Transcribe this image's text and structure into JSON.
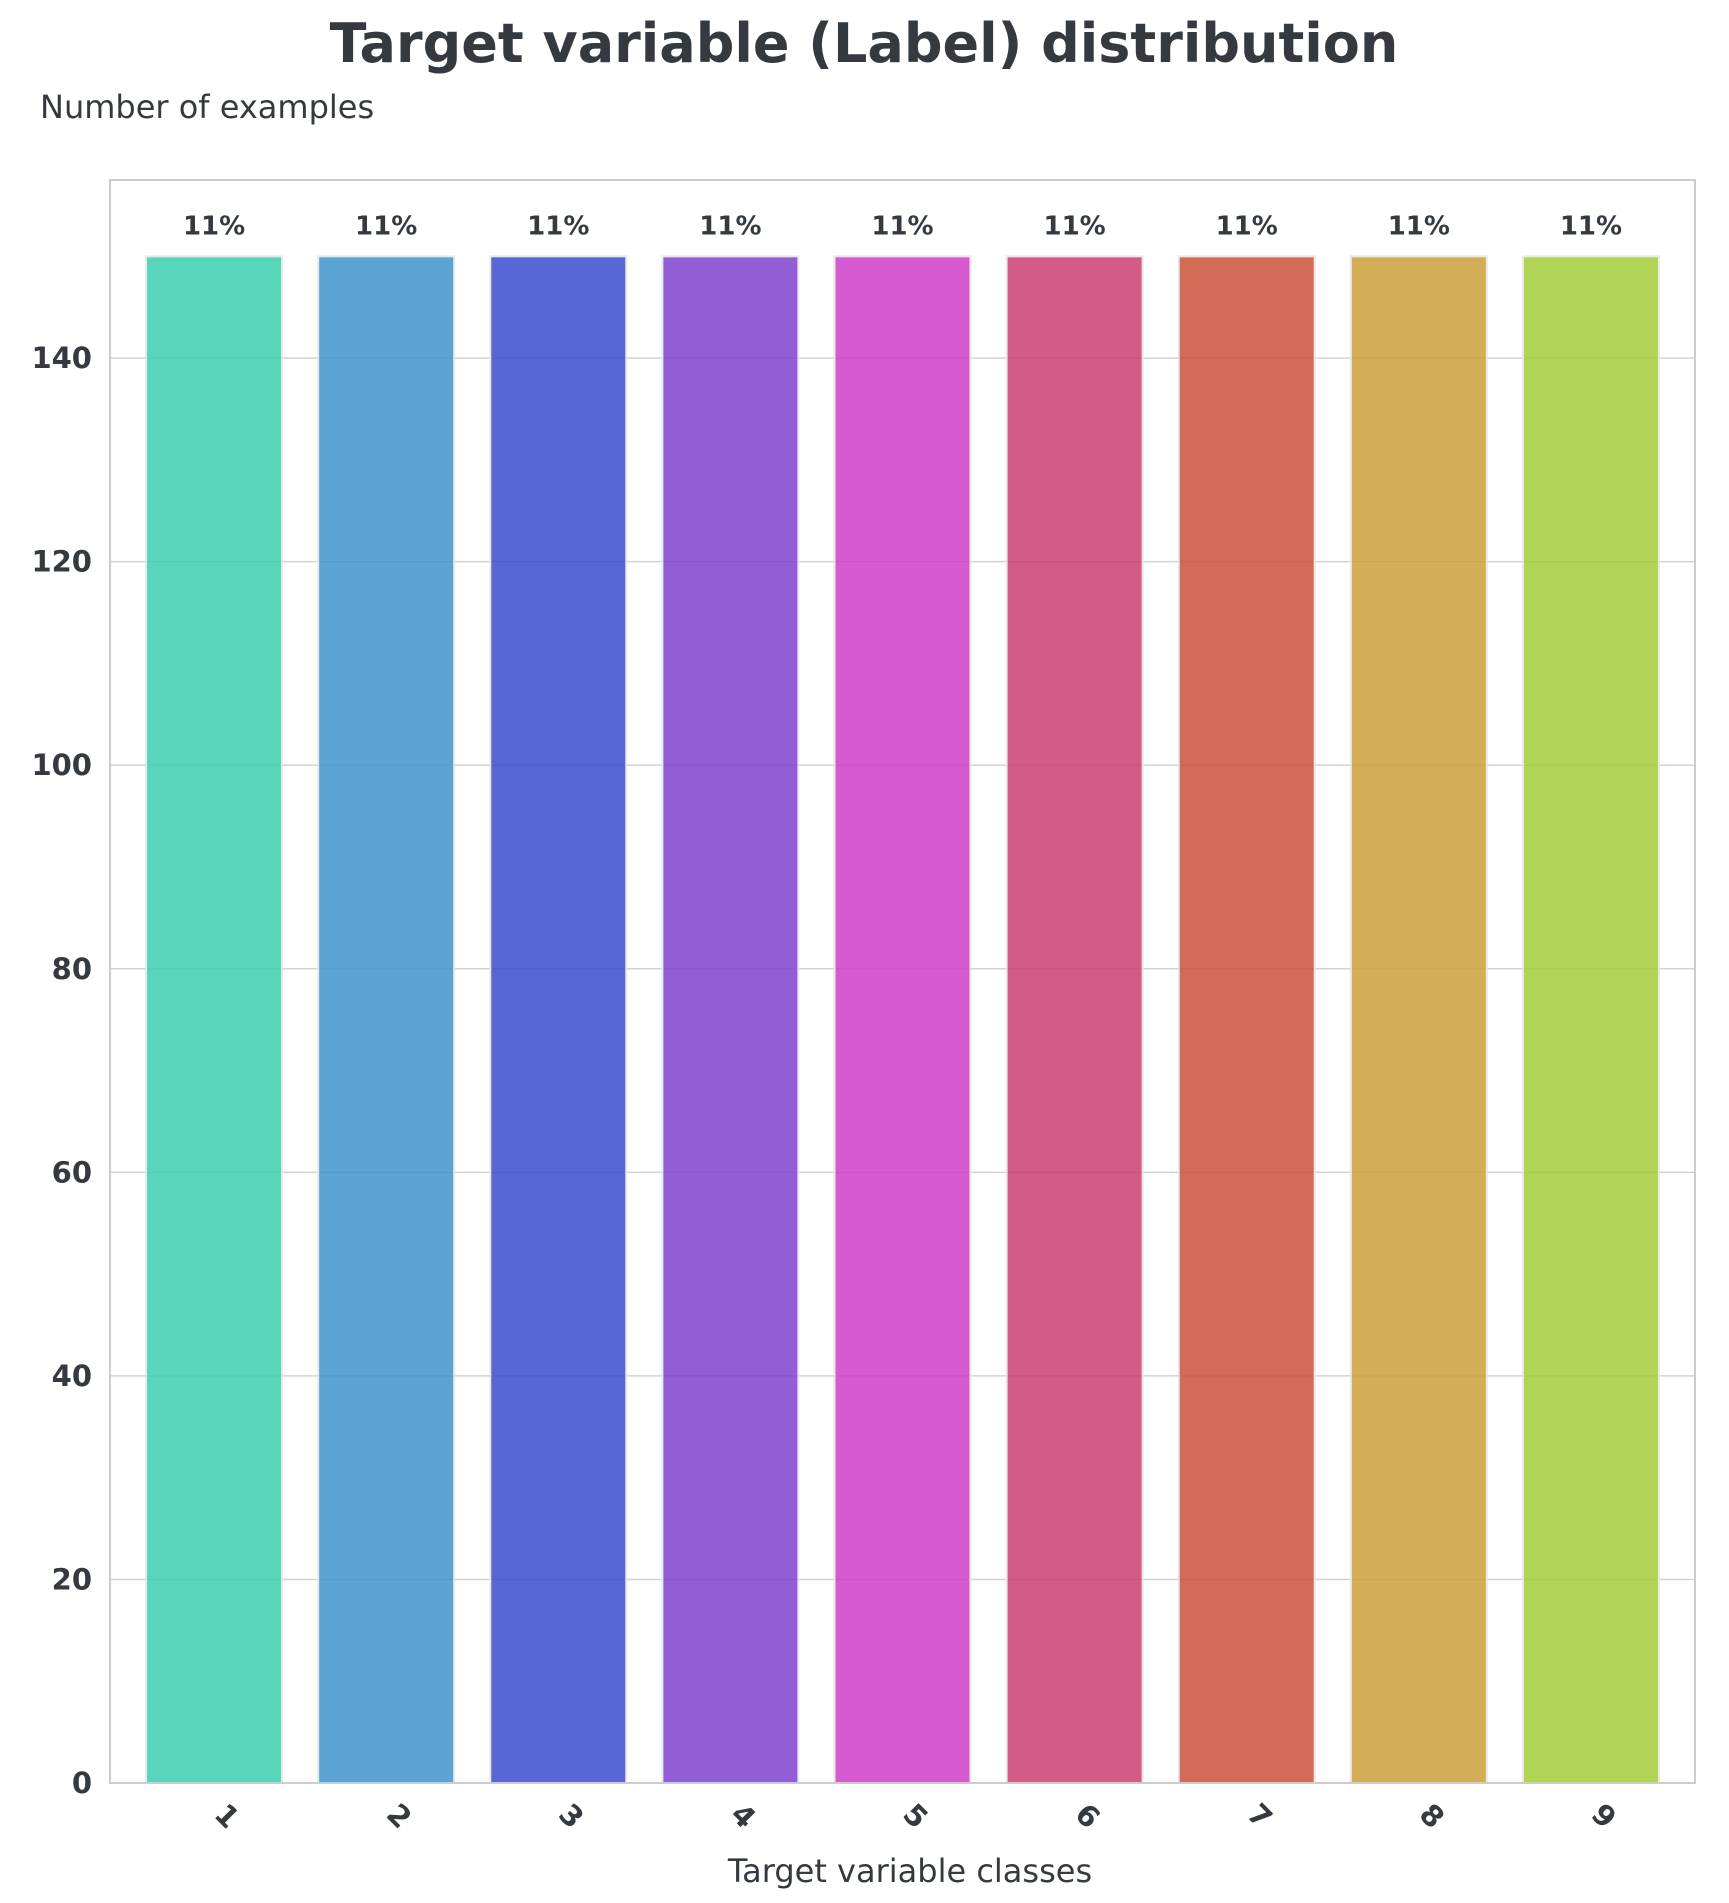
{
  "chart_data": {
    "type": "bar",
    "title": "Target variable (Label) distribution",
    "ylabel": "Number of examples",
    "xlabel": "Target variable classes",
    "categories": [
      "1",
      "2",
      "3",
      "4",
      "5",
      "6",
      "7",
      "8",
      "9"
    ],
    "values": [
      150,
      150,
      150,
      150,
      150,
      150,
      150,
      150,
      150
    ],
    "data_labels": [
      "11%",
      "11%",
      "11%",
      "11%",
      "11%",
      "11%",
      "11%",
      "11%",
      "11%"
    ],
    "colors": [
      "#3ccfb0",
      "#3f95cc",
      "#3c4ccf",
      "#8042cf",
      "#cf3fca",
      "#cc3f71",
      "#cc5339",
      "#cca139",
      "#a4cc39"
    ],
    "ylim": [
      0,
      157.5
    ],
    "yticks": [
      0,
      20,
      40,
      60,
      80,
      100,
      120,
      140
    ],
    "grid": true,
    "legend": "none"
  }
}
